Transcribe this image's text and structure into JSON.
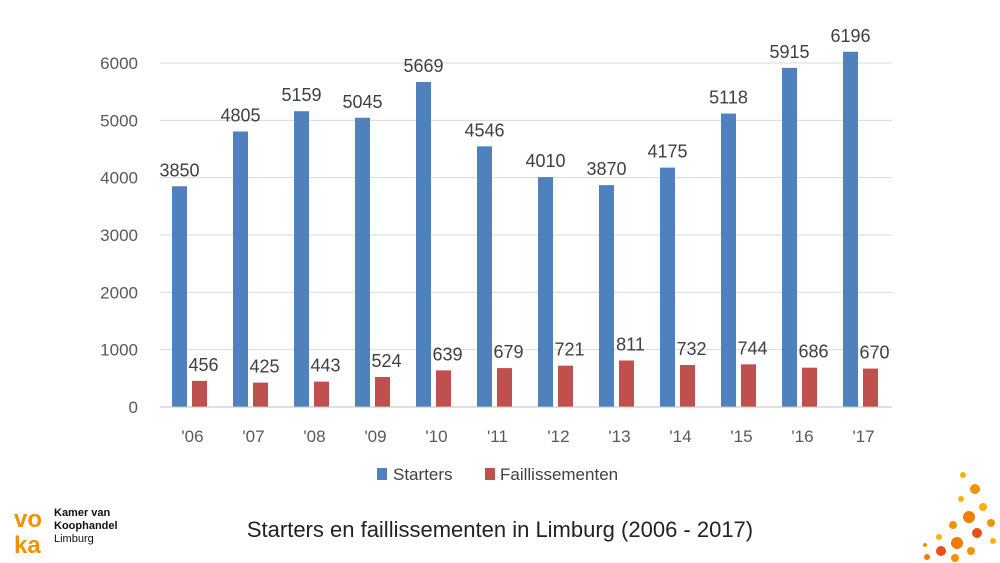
{
  "chart_data": {
    "type": "bar",
    "title": "Starters en faillissementen in Limburg (2006 - 2017)",
    "categories": [
      "'06",
      "'07",
      "'08",
      "'09",
      "'10",
      "'11",
      "'12",
      "'13",
      "'14",
      "'15",
      "'16",
      "'17"
    ],
    "series": [
      {
        "name": "Starters",
        "color": "#4f81bd",
        "values": [
          3850,
          4805,
          5159,
          5045,
          5669,
          4546,
          4010,
          3870,
          4175,
          5118,
          5915,
          6196
        ]
      },
      {
        "name": "Faillissementen",
        "color": "#c0504d",
        "values": [
          456,
          425,
          443,
          524,
          639,
          679,
          721,
          811,
          732,
          744,
          686,
          670
        ]
      }
    ],
    "yticks": [
      0,
      1000,
      2000,
      3000,
      4000,
      5000,
      6000
    ],
    "ylim": [
      0,
      6000
    ],
    "xlabel": "",
    "ylabel": "",
    "grid": true,
    "legend": "bottom"
  },
  "caption": "Starters en faillissementen in Limburg (2006 - 2017)",
  "logo": {
    "mark": "voka",
    "line1": "Kamer van",
    "line2": "Koophandel",
    "line3": "Limburg",
    "color": "#f39200"
  },
  "decoration": {
    "dots_icon": "orange-dots-icon"
  }
}
